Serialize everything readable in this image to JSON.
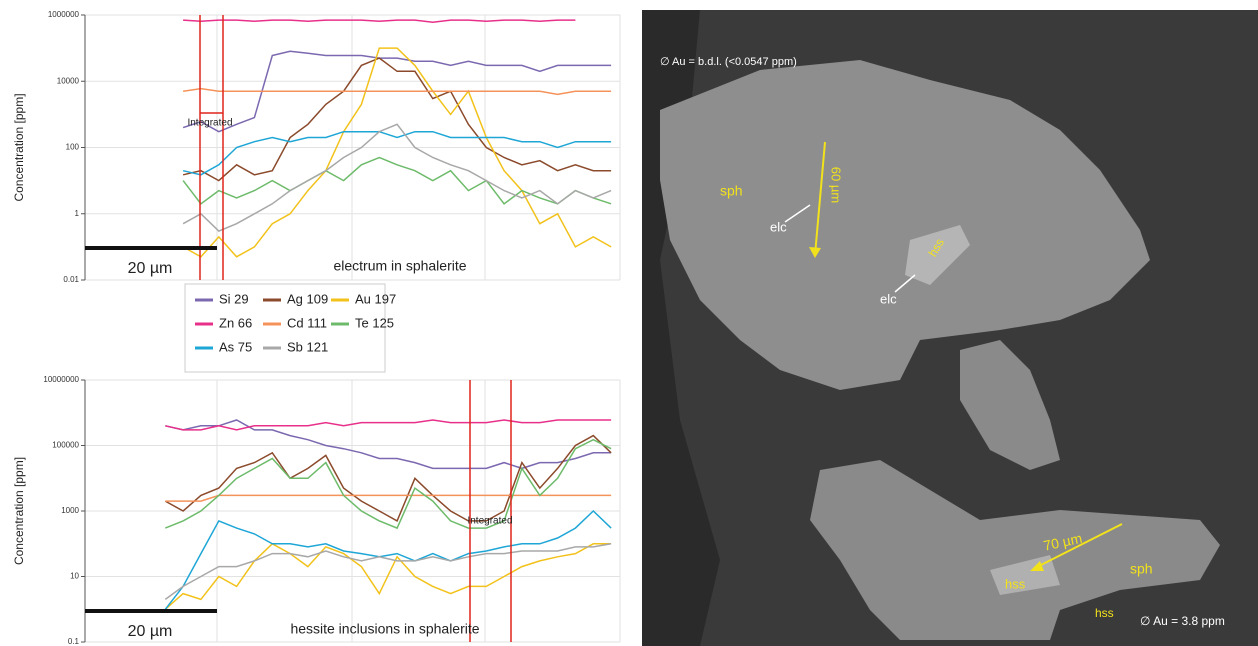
{
  "chart_data": [
    {
      "type": "line",
      "ylabel": "Concentration [ppm]",
      "log_y": true,
      "grid": true,
      "ylim": [
        0.01,
        1000000
      ],
      "yticks": [
        0.01,
        1,
        100,
        10000,
        1000000
      ],
      "annotations": [
        "20 µm",
        "electrum in sphalerite",
        "Integrated"
      ],
      "categories": [
        null,
        null,
        null,
        null,
        null,
        null,
        null,
        null,
        null,
        null,
        null,
        null,
        null,
        null,
        null,
        null,
        null,
        null,
        null,
        null,
        null,
        null,
        null,
        null,
        null,
        null,
        null,
        null,
        null,
        null
      ],
      "series": [
        {
          "name": "Si 29",
          "color": "#7b68b0",
          "values": [
            null,
            null,
            null,
            null,
            null,
            400,
            600,
            300,
            500,
            800,
            60000,
            80000,
            70000,
            60000,
            60000,
            60000,
            50000,
            50000,
            40000,
            40000,
            30000,
            40000,
            30000,
            30000,
            30000,
            20000,
            30000,
            30000,
            30000,
            30000
          ]
        },
        {
          "name": "Ag 109",
          "color": "#8b4a2b",
          "values": [
            null,
            null,
            null,
            null,
            null,
            15,
            20,
            10,
            30,
            15,
            20,
            200,
            500,
            2000,
            5000,
            30000,
            50000,
            20000,
            20000,
            3000,
            5000,
            500,
            100,
            50,
            30,
            40,
            20,
            30,
            20,
            20
          ]
        },
        {
          "name": "Au 197",
          "color": "#f2c21b",
          "values": [
            null,
            null,
            null,
            null,
            null,
            0.1,
            0.05,
            0.2,
            0.05,
            0.1,
            0.5,
            1,
            5,
            20,
            300,
            2000,
            100000,
            100000,
            30000,
            5000,
            1000,
            5000,
            200,
            20,
            5,
            0.5,
            1,
            0.1,
            0.2,
            0.1
          ]
        },
        {
          "name": "Zn 66",
          "color": "#e8308a",
          "values": [
            null,
            null,
            null,
            null,
            null,
            700000,
            650000,
            700000,
            700000,
            650000,
            700000,
            700000,
            650000,
            700000,
            700000,
            700000,
            650000,
            700000,
            700000,
            600000,
            700000,
            700000,
            650000,
            700000,
            700000,
            650000,
            700000,
            700000,
            null,
            null
          ]
        },
        {
          "name": "Cd 111",
          "color": "#f4925a",
          "values": [
            null,
            null,
            null,
            null,
            null,
            5000,
            6000,
            5000,
            5000,
            5000,
            5000,
            5000,
            5000,
            5000,
            5000,
            5000,
            5000,
            5000,
            5000,
            5000,
            5000,
            5000,
            5000,
            5000,
            5000,
            5000,
            4000,
            5000,
            5000,
            5000
          ]
        },
        {
          "name": "Te 125",
          "color": "#6dbb6a",
          "values": [
            null,
            null,
            null,
            null,
            null,
            10,
            2,
            5,
            3,
            5,
            10,
            5,
            10,
            20,
            10,
            30,
            50,
            30,
            20,
            10,
            20,
            5,
            10,
            2,
            5,
            3,
            2,
            5,
            3,
            2
          ]
        },
        {
          "name": "As 75",
          "color": "#1ea6d6",
          "values": [
            null,
            null,
            null,
            null,
            null,
            20,
            15,
            30,
            100,
            150,
            200,
            150,
            200,
            200,
            300,
            300,
            300,
            200,
            300,
            300,
            200,
            200,
            200,
            200,
            150,
            150,
            100,
            150,
            150,
            150
          ]
        },
        {
          "name": "Sb 121",
          "color": "#a8a8a8",
          "values": [
            null,
            null,
            null,
            null,
            null,
            0.5,
            1,
            0.3,
            0.5,
            1,
            2,
            5,
            10,
            20,
            50,
            100,
            300,
            500,
            100,
            50,
            30,
            20,
            10,
            5,
            3,
            5,
            2,
            5,
            3,
            5
          ]
        }
      ]
    },
    {
      "type": "line",
      "ylabel": "Concentration [ppm]",
      "log_y": true,
      "grid": true,
      "ylim": [
        0.1,
        10000000
      ],
      "yticks": [
        0.1,
        10,
        1000,
        100000,
        10000000
      ],
      "annotations": [
        "20 µm",
        "hessite inclusions in sphalerite",
        "Integrated"
      ],
      "categories": [
        null,
        null,
        null,
        null,
        null,
        null,
        null,
        null,
        null,
        null,
        null,
        null,
        null,
        null,
        null,
        null,
        null,
        null,
        null,
        null,
        null,
        null,
        null,
        null,
        null,
        null,
        null,
        null,
        null,
        null
      ],
      "series": [
        {
          "color": "#7b68b0",
          "values": [
            null,
            null,
            null,
            null,
            400000,
            300000,
            400000,
            400000,
            600000,
            300000,
            300000,
            200000,
            150000,
            100000,
            80000,
            60000,
            40000,
            40000,
            30000,
            20000,
            20000,
            20000,
            20000,
            30000,
            20000,
            30000,
            30000,
            40000,
            60000,
            60000
          ]
        },
        {
          "color": "#8b4a2b",
          "values": [
            null,
            null,
            null,
            null,
            2000,
            1000,
            3000,
            5000,
            20000,
            30000,
            60000,
            10000,
            20000,
            50000,
            5000,
            2000,
            1000,
            500,
            10000,
            3000,
            1000,
            500,
            500,
            1000,
            30000,
            5000,
            20000,
            100000,
            200000,
            60000
          ]
        },
        {
          "color": "#f2c21b",
          "values": [
            null,
            null,
            null,
            null,
            1,
            3,
            2,
            10,
            5,
            30,
            100,
            50,
            20,
            80,
            50,
            20,
            3,
            40,
            10,
            5,
            3,
            5,
            5,
            10,
            20,
            30,
            40,
            50,
            100,
            100
          ]
        },
        {
          "color": "#e8308a",
          "values": [
            null,
            null,
            null,
            null,
            400000,
            300000,
            300000,
            400000,
            300000,
            400000,
            400000,
            400000,
            400000,
            500000,
            400000,
            500000,
            500000,
            500000,
            500000,
            600000,
            500000,
            500000,
            500000,
            600000,
            500000,
            500000,
            600000,
            600000,
            600000,
            600000
          ]
        },
        {
          "color": "#f4925a",
          "values": [
            null,
            null,
            null,
            null,
            2000,
            2000,
            2000,
            3000,
            3000,
            3000,
            3000,
            3000,
            3000,
            3000,
            3000,
            3000,
            3000,
            3000,
            3000,
            3000,
            3000,
            3000,
            3000,
            3000,
            3000,
            3000,
            3000,
            3000,
            3000,
            3000
          ]
        },
        {
          "color": "#6dbb6a",
          "values": [
            null,
            null,
            null,
            null,
            300,
            500,
            1000,
            3000,
            10000,
            20000,
            40000,
            10000,
            10000,
            30000,
            3000,
            1000,
            500,
            300,
            5000,
            2000,
            500,
            300,
            300,
            500,
            20000,
            3000,
            10000,
            80000,
            150000,
            80000
          ]
        },
        {
          "color": "#1ea6d6",
          "values": [
            null,
            null,
            null,
            null,
            1,
            5,
            50,
            500,
            300,
            200,
            100,
            100,
            80,
            100,
            60,
            50,
            40,
            50,
            30,
            50,
            30,
            50,
            60,
            80,
            100,
            100,
            150,
            300,
            1000,
            300
          ]
        },
        {
          "color": "#a8a8a8",
          "values": [
            null,
            null,
            null,
            null,
            2,
            5,
            10,
            20,
            20,
            30,
            50,
            50,
            40,
            60,
            40,
            30,
            40,
            30,
            30,
            40,
            30,
            40,
            50,
            50,
            60,
            60,
            60,
            80,
            80,
            100
          ]
        }
      ]
    }
  ],
  "image": {
    "labels": [
      "∅ Au = b.d.l. (<0.0547 ppm)",
      "sph",
      "60 µm",
      "elc",
      "hss",
      "elc",
      "70 µm",
      "sph",
      "hss",
      "hss",
      "∅ Au = 3.8 ppm"
    ]
  }
}
